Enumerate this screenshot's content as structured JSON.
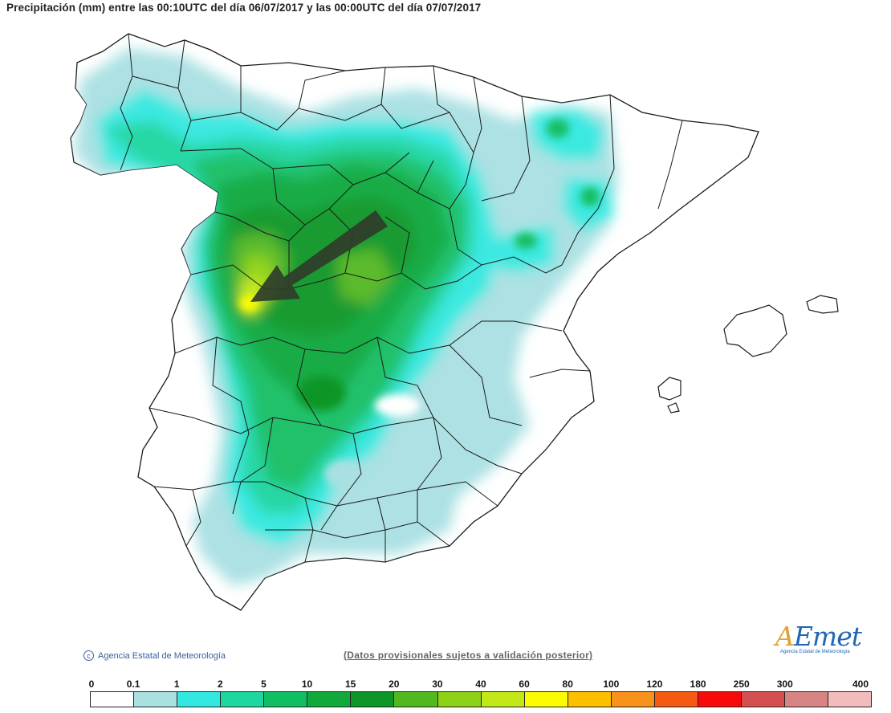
{
  "title": "Precipitación (mm) entre las 00:10UTC del día 06/07/2017 y las 00:00UTC del día 07/07/2017",
  "copyright": "Agencia Estatal de Meteorología",
  "disclaimer": "(Datos provisionales sujetos a validación posterior)",
  "logo": {
    "mark_a": "A",
    "mark_rest": "Emet",
    "subtitle": "Agencia Estatal de Meteorología"
  },
  "legend": {
    "labels": [
      "0",
      "0.1",
      "1",
      "2",
      "5",
      "10",
      "15",
      "20",
      "30",
      "40",
      "60",
      "80",
      "100",
      "120",
      "180",
      "250",
      "300",
      "400"
    ],
    "colors": [
      "#ffffff",
      "#a9e0e2",
      "#33e8e0",
      "#1ed6a0",
      "#12be64",
      "#11a83c",
      "#0e9628",
      "#52b820",
      "#8ed218",
      "#c2e818",
      "#fcfc00",
      "#fcc000",
      "#f8921a",
      "#f45a12",
      "#f60a0a",
      "#d45050",
      "#d68484",
      "#f2bcbc"
    ]
  },
  "icons": {
    "copyright": "copyright-icon",
    "arrow": "storm-direction-arrow"
  },
  "colors": {
    "land": "#ffffff",
    "border": "#1a1a1a"
  }
}
